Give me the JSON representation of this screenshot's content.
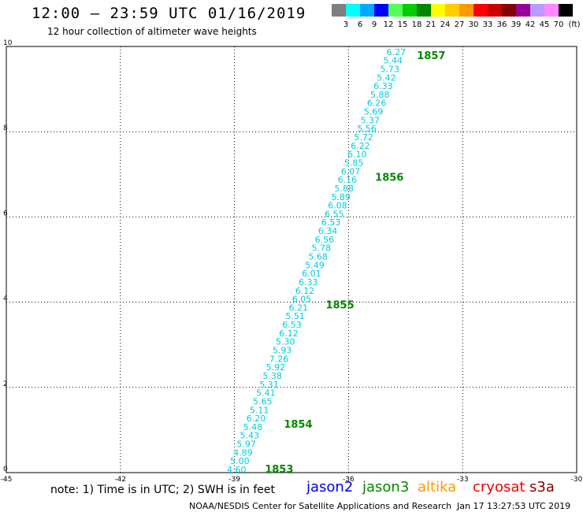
{
  "header": {
    "title": "12:00 – 23:59 UTC 01/16/2019",
    "subtitle": "12 hour collection of altimeter wave heights"
  },
  "legend": {
    "unit": "(ft)",
    "bins": [
      {
        "label": "3",
        "color": "#7f7f7f"
      },
      {
        "label": "6",
        "color": "#00ffff"
      },
      {
        "label": "9",
        "color": "#00aaff"
      },
      {
        "label": "12",
        "color": "#0000ff"
      },
      {
        "label": "15",
        "color": "#55ff55"
      },
      {
        "label": "18",
        "color": "#00cc00"
      },
      {
        "label": "21",
        "color": "#008800"
      },
      {
        "label": "24",
        "color": "#ffff00"
      },
      {
        "label": "27",
        "color": "#ffcc00"
      },
      {
        "label": "30",
        "color": "#ff9900"
      },
      {
        "label": "33",
        "color": "#ff0000"
      },
      {
        "label": "36",
        "color": "#cc0000"
      },
      {
        "label": "39",
        "color": "#880000"
      },
      {
        "label": "42",
        "color": "#990099"
      },
      {
        "label": "45",
        "color": "#bb99ff"
      },
      {
        "label": "70",
        "color": "#ff88ff"
      },
      {
        "label": "",
        "color": "#000000"
      }
    ]
  },
  "chart_data": {
    "type": "scatter",
    "title": "12:00 – 23:59 UTC 01/16/2019",
    "xlim": [
      -45,
      -30
    ],
    "ylim": [
      0,
      10
    ],
    "xticks": [
      "-45",
      "-42",
      "-39",
      "-36",
      "-33",
      "-30"
    ],
    "yticks": [
      "0",
      "2",
      "4",
      "6",
      "8",
      "10"
    ],
    "grid": true,
    "label_color": "#00ccdd",
    "track_start": [
      -39.2,
      0.0
    ],
    "track_end": [
      -35.0,
      9.8
    ],
    "swh_values": [
      "4.60",
      "5.00",
      "4.89",
      "5.97",
      "5.43",
      "5.48",
      "6.20",
      "5.11",
      "5.65",
      "5.41",
      "5.31",
      "5.38",
      "5.92",
      "7.26",
      "5.93",
      "5.30",
      "6.12",
      "6.53",
      "5.51",
      "6.21",
      "6.05",
      "6.12",
      "6.33",
      "6.01",
      "5.49",
      "5.68",
      "5.78",
      "6.56",
      "6.34",
      "6.53",
      "6.55",
      "6.08",
      "5.89",
      "5.88",
      "6.16",
      "6.07",
      "5.85",
      "6.10",
      "6.22",
      "5.72",
      "5.56",
      "5.37",
      "5.69",
      "6.26",
      "5.88",
      "6.33",
      "5.42",
      "5.73",
      "5.44",
      "6.27"
    ],
    "time_marks": [
      {
        "label": "1853",
        "x": -38.2,
        "y": 0.0
      },
      {
        "label": "1854",
        "x": -37.7,
        "y": 1.05
      },
      {
        "label": "1855",
        "x": -36.6,
        "y": 3.85
      },
      {
        "label": "1856",
        "x": -35.3,
        "y": 6.85
      },
      {
        "label": "1857",
        "x": -34.2,
        "y": 9.7
      }
    ],
    "time_mark_color": "#008800"
  },
  "footer": {
    "note": "note: 1) Time is in UTC; 2) SWH is in feet",
    "satellites": [
      {
        "name": "jason2",
        "color": "#0000ee"
      },
      {
        "name": "jason3",
        "color": "#008800"
      },
      {
        "name": "altika",
        "color": "#ff9900"
      },
      {
        "name": "cryosat",
        "color": "#ee0000"
      },
      {
        "name": "s3a",
        "color": "#880000"
      }
    ],
    "credit": "NOAA/NESDIS Center for Satellite Applications and Research",
    "timestamp": "Jan 17 13:27:53 UTC 2019"
  }
}
